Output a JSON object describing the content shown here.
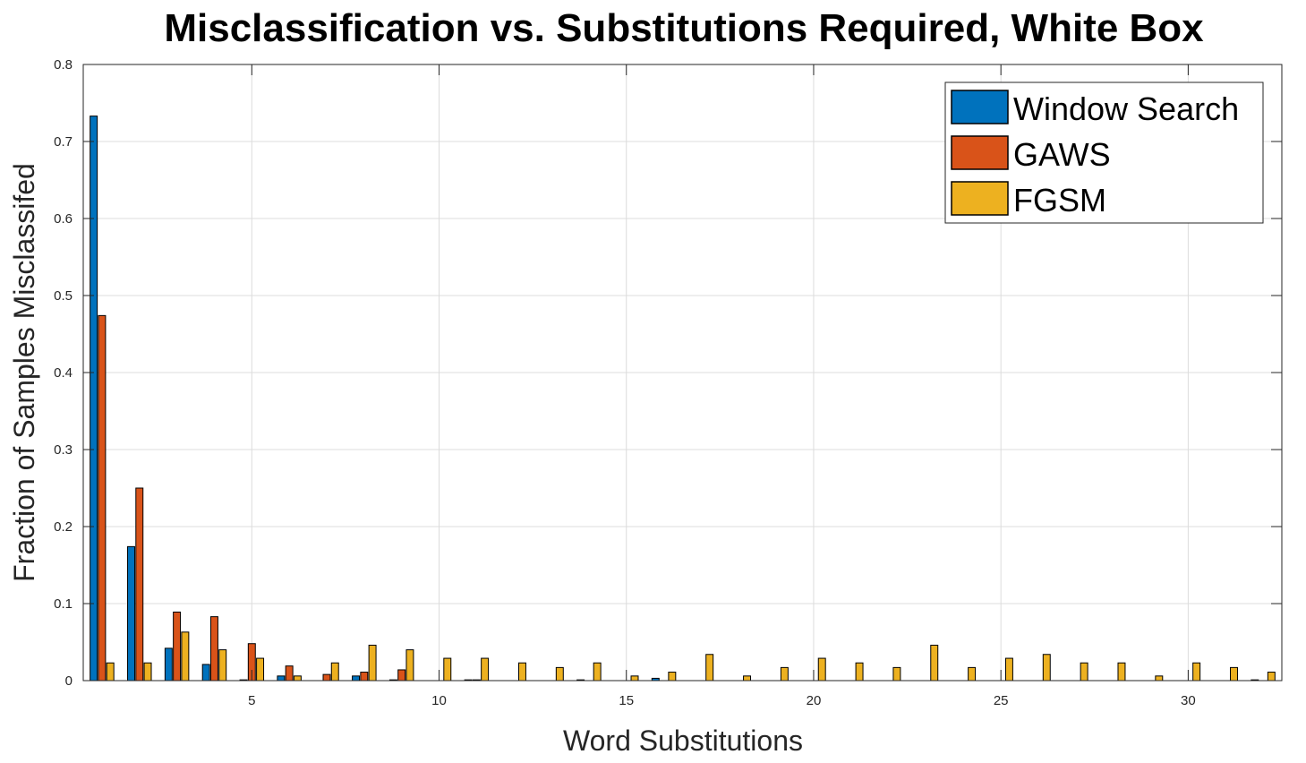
{
  "chart_data": {
    "type": "bar",
    "title": "Misclassification vs. Substitutions Required, White Box",
    "xlabel": "Word Substitutions",
    "ylabel": "Fraction of Samples Misclassifed",
    "xlim": [
      0.5,
      32.5
    ],
    "ylim": [
      0,
      0.8
    ],
    "x_ticks": [
      5,
      10,
      15,
      20,
      25,
      30
    ],
    "y_ticks": [
      0,
      0.1,
      0.2,
      0.3,
      0.4,
      0.5,
      0.6,
      0.7,
      0.8
    ],
    "y_tick_labels": [
      "0",
      "0.1",
      "0.2",
      "0.3",
      "0.4",
      "0.5",
      "0.6",
      "0.7",
      "0.8"
    ],
    "grid": true,
    "legend_position": "top-right",
    "categories": [
      1,
      2,
      3,
      4,
      5,
      6,
      7,
      8,
      9,
      10,
      11,
      12,
      13,
      14,
      15,
      16,
      17,
      18,
      19,
      20,
      21,
      22,
      23,
      24,
      25,
      26,
      27,
      28,
      29,
      30,
      31,
      32
    ],
    "series": [
      {
        "name": "Window Search",
        "color": "#0072BD",
        "values": [
          0.733,
          0.174,
          0.042,
          0.021,
          0.001,
          0.006,
          0,
          0.006,
          0.001,
          0,
          0.001,
          0,
          0,
          0.001,
          0,
          0.003,
          0,
          0,
          0,
          0,
          0,
          0,
          0,
          0,
          0,
          0,
          0,
          0,
          0,
          0,
          0,
          0.001
        ]
      },
      {
        "name": "GAWS",
        "color": "#D95319",
        "values": [
          0.474,
          0.25,
          0.089,
          0.083,
          0.048,
          0.019,
          0.008,
          0.011,
          0.014,
          0,
          0.001,
          0,
          0,
          0,
          0,
          0,
          0,
          0,
          0,
          0,
          0,
          0,
          0,
          0,
          0,
          0,
          0,
          0,
          0,
          0,
          0,
          0
        ]
      },
      {
        "name": "FGSM",
        "color": "#EDB120",
        "values": [
          0.023,
          0.023,
          0.063,
          0.04,
          0.029,
          0.006,
          0.023,
          0.046,
          0.04,
          0.029,
          0.029,
          0.023,
          0.017,
          0.023,
          0.006,
          0.011,
          0.034,
          0.006,
          0.017,
          0.029,
          0.023,
          0.017,
          0.046,
          0.017,
          0.029,
          0.034,
          0.023,
          0.023,
          0.006,
          0.023,
          0.017,
          0.011
        ]
      }
    ]
  }
}
